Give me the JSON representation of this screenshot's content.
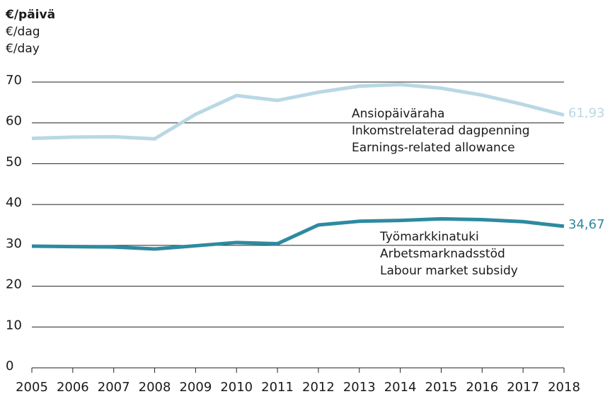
{
  "chart_data": {
    "type": "line",
    "y_label": [
      "€/päivä",
      "€/dag",
      "€/day"
    ],
    "x": [
      2005,
      2006,
      2007,
      2008,
      2009,
      2010,
      2011,
      2012,
      2013,
      2014,
      2015,
      2016,
      2017,
      2018
    ],
    "xlim": [
      2005,
      2018
    ],
    "xticks": [
      2005,
      2006,
      2007,
      2008,
      2009,
      2010,
      2011,
      2012,
      2013,
      2014,
      2015,
      2016,
      2017,
      2018
    ],
    "ylim": [
      0,
      70
    ],
    "yticks": [
      0,
      10,
      20,
      30,
      40,
      50,
      60,
      70
    ],
    "grid": true,
    "series": [
      {
        "name": [
          "Ansiopäiväraha",
          "Inkomstrelaterad dagpenning",
          "Earnings-related allowance"
        ],
        "color": "#b9d8e4",
        "values": [
          56.2,
          56.5,
          56.6,
          56.1,
          62.1,
          66.7,
          65.5,
          67.5,
          69.0,
          69.4,
          68.5,
          66.8,
          64.5,
          61.93
        ],
        "value_labels": [
          null,
          null,
          null,
          null,
          null,
          null,
          null,
          null,
          null,
          null,
          null,
          null,
          null,
          "61,93"
        ]
      },
      {
        "name": [
          "Työmarkkinatuki",
          "Arbetsmarknadsstöd",
          "Labour market subsidy"
        ],
        "color": "#2e8aa0",
        "values": [
          29.8,
          29.7,
          29.6,
          29.1,
          29.9,
          30.7,
          30.4,
          35.0,
          35.9,
          36.1,
          36.5,
          36.3,
          35.8,
          34.67
        ],
        "value_labels": [
          null,
          null,
          null,
          null,
          null,
          null,
          null,
          null,
          null,
          null,
          null,
          null,
          null,
          "34,67"
        ]
      }
    ]
  }
}
